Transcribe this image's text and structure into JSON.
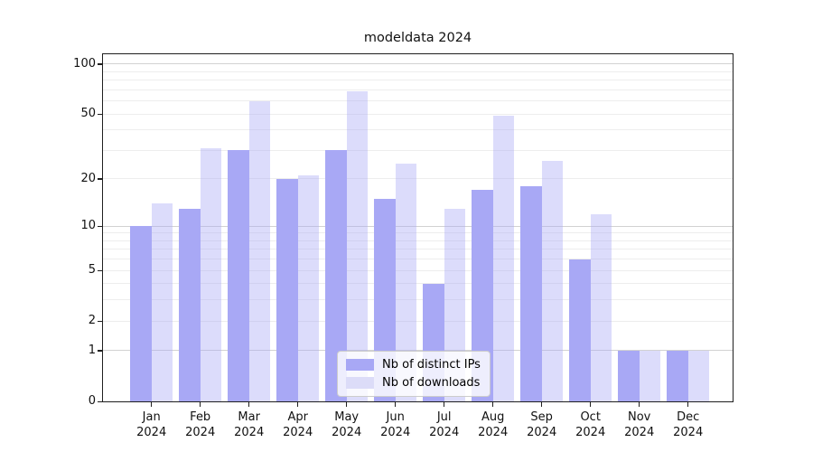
{
  "title": "modeldata 2024",
  "chart_data": {
    "type": "bar",
    "title": "modeldata 2024",
    "categories": [
      "Jan",
      "Feb",
      "Mar",
      "Apr",
      "May",
      "Jun",
      "Jul",
      "Aug",
      "Sep",
      "Oct",
      "Nov",
      "Dec"
    ],
    "category_year": "2024",
    "series": [
      {
        "name": "Nb of distinct IPs",
        "legend_color": "#a8a8f5",
        "bar_color": "#a8a8f5",
        "bar_opacity": 1,
        "values": [
          10,
          13,
          30,
          20,
          30,
          15,
          4,
          17,
          18,
          6,
          1,
          1
        ]
      },
      {
        "name": "Nb of downloads",
        "legend_color": "#dcdcf8",
        "bar_color": "#a8a8f5",
        "bar_opacity": 0.4,
        "values": [
          14,
          31,
          60,
          21,
          69,
          25,
          13,
          49,
          26,
          12,
          1,
          1
        ]
      }
    ],
    "yscale": "log1p",
    "ylim": [
      0,
      114.5
    ],
    "yticks": [
      0,
      1,
      2,
      5,
      10,
      20,
      50,
      100
    ],
    "major_gridlines": [
      1,
      10,
      100
    ],
    "minor_gridlines": [
      2,
      3,
      4,
      5,
      6,
      7,
      8,
      9,
      20,
      30,
      40,
      50,
      60,
      70,
      80,
      90
    ],
    "grid": true,
    "legend_position": "lower center inside"
  }
}
